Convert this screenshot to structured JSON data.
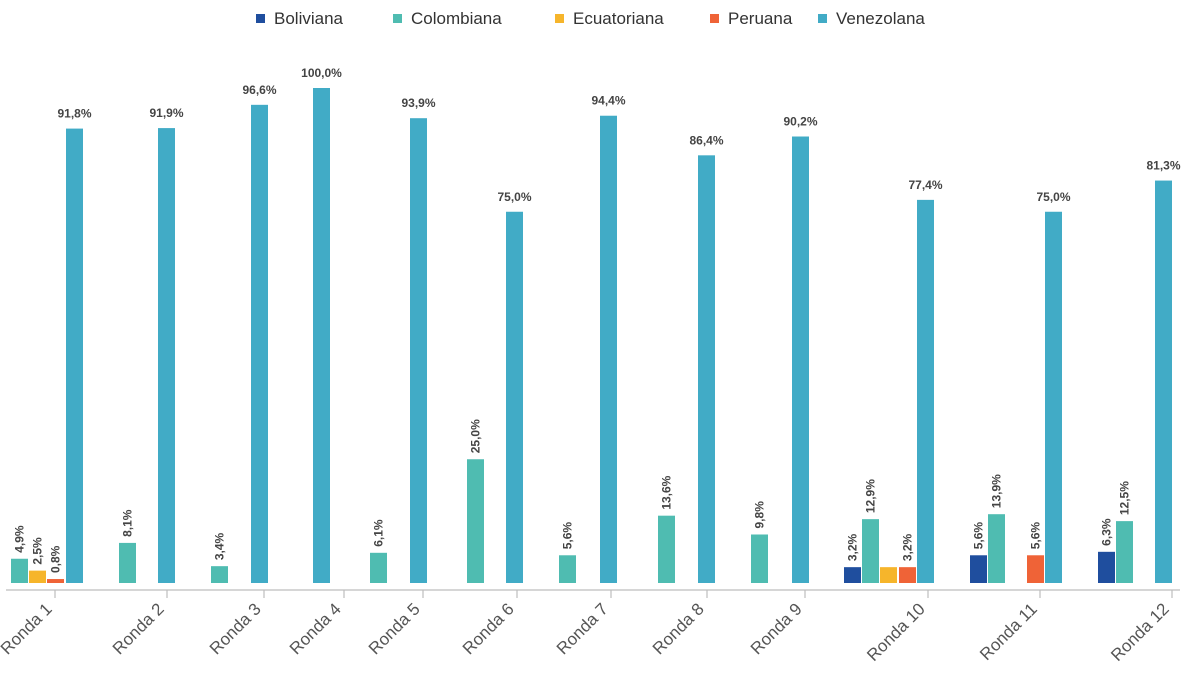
{
  "chart_data": {
    "type": "bar",
    "categories": [
      "Ronda 1",
      "Ronda 2",
      "Ronda 3",
      "Ronda 4",
      "Ronda 5",
      "Ronda 6",
      "Ronda 7",
      "Ronda 8",
      "Ronda 9",
      "Ronda 10",
      "Ronda 11",
      "Ronda 12"
    ],
    "series": [
      {
        "name": "Boliviana",
        "color": "#1f4e9e",
        "values": [
          null,
          null,
          null,
          null,
          null,
          null,
          null,
          null,
          null,
          3.2,
          5.6,
          6.3
        ],
        "labels": [
          null,
          null,
          null,
          null,
          null,
          null,
          null,
          null,
          null,
          "3,2%",
          "5,6%",
          "6,3%"
        ]
      },
      {
        "name": "Colombiana",
        "color": "#4fbcb1",
        "values": [
          4.9,
          8.1,
          3.4,
          null,
          6.1,
          25.0,
          5.6,
          13.6,
          9.8,
          12.9,
          13.9,
          12.5
        ],
        "labels": [
          "4,9%",
          "8,1%",
          "3,4%",
          null,
          "6,1%",
          "25,0%",
          "5,6%",
          "13,6%",
          "9,8%",
          "12,9%",
          "13,9%",
          "12,5%"
        ]
      },
      {
        "name": "Ecuatoriana",
        "color": "#f6b52b",
        "values": [
          2.5,
          null,
          null,
          null,
          null,
          null,
          null,
          null,
          null,
          3.2,
          null,
          null
        ],
        "labels": [
          "2,5%",
          null,
          null,
          null,
          null,
          null,
          null,
          null,
          null,
          null,
          null,
          null
        ]
      },
      {
        "name": "Peruana",
        "color": "#ef6337",
        "values": [
          0.8,
          null,
          null,
          null,
          null,
          null,
          null,
          null,
          null,
          3.2,
          5.6,
          null
        ],
        "labels": [
          "0,8%",
          null,
          null,
          null,
          null,
          null,
          null,
          null,
          null,
          "3,2%",
          "5,6%",
          null
        ]
      },
      {
        "name": "Venezolana",
        "color": "#41abc6",
        "values": [
          91.8,
          91.9,
          96.6,
          100.0,
          93.9,
          75.0,
          94.4,
          86.4,
          90.2,
          77.4,
          75.0,
          81.3
        ],
        "labels": [
          "91,8%",
          "91,9%",
          "96,6%",
          "100,0%",
          "93,9%",
          "75,0%",
          "94,4%",
          "86,4%",
          "90,2%",
          "77,4%",
          "75,0%",
          "81,3%"
        ]
      }
    ],
    "ylim": [
      0,
      100
    ],
    "grid": false,
    "legend_position": "top"
  }
}
